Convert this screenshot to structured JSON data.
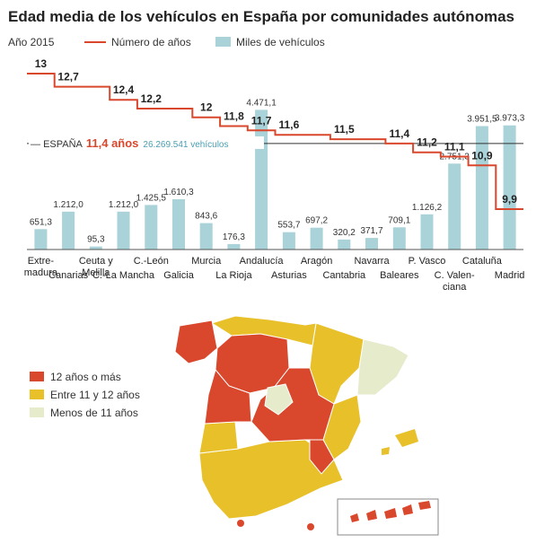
{
  "title": "Edad media de los vehículos en España por comunidades autónomas",
  "year_label": "Año 2015",
  "colors": {
    "line": "#d9472c",
    "bar": "#a9d3d8",
    "high": "#d9472c",
    "mid": "#e8c02a",
    "low": "#e6ebcc",
    "reference": "#333333"
  },
  "chart_data": {
    "type": "bar",
    "title": "Edad media de los vehículos en España por comunidades autónomas",
    "categories": [
      "Extremadura",
      "Canarias",
      "Ceuta y Melilla",
      "C.-La Mancha",
      "C.-León",
      "Galicia",
      "Murcia",
      "La Rioja",
      "Andalucía",
      "Asturias",
      "Aragón",
      "Cantabria",
      "Navarra",
      "Baleares",
      "P. Vasco",
      "C. Valenciana",
      "Cataluña",
      "Madrid"
    ],
    "category_labels": [
      [
        "Extre-",
        "madura"
      ],
      [
        "Canarias"
      ],
      [
        "Ceuta y",
        "Melilla"
      ],
      [
        "C.-La Mancha"
      ],
      [
        "C.-León"
      ],
      [
        "Galicia"
      ],
      [
        "Murcia"
      ],
      [
        "La Rioja"
      ],
      [
        "Andalucía"
      ],
      [
        "Asturias"
      ],
      [
        "Aragón"
      ],
      [
        "Cantabria"
      ],
      [
        "Navarra"
      ],
      [
        "Baleares"
      ],
      [
        "P. Vasco"
      ],
      [
        "C. Valen-",
        "ciana"
      ],
      [
        "Cataluña"
      ],
      [
        "Madrid"
      ]
    ],
    "series": [
      {
        "name": "Miles de vehículos",
        "type": "bar",
        "values": [
          651.3,
          1212.0,
          95.3,
          1212.0,
          1425.5,
          1610.3,
          843.6,
          176.3,
          4471.1,
          553.7,
          697.2,
          320.2,
          371.7,
          709.1,
          1126.2,
          2751.3,
          3951.5,
          3973.3
        ],
        "value_labels": [
          "651,3",
          "1.212,0",
          "95,3",
          "1.212,0",
          "1.425,5",
          "1.610,3",
          "843,6",
          "176,3",
          "4.471,1",
          "553,7",
          "697,2",
          "320,2",
          "371,7",
          "709,1",
          "1.126,2",
          "2.751,3",
          "3.951,5",
          "3.973,3"
        ]
      },
      {
        "name": "Número de años",
        "type": "step-line",
        "values": [
          13,
          12.7,
          12.7,
          12.4,
          12.2,
          12.2,
          12,
          11.8,
          11.7,
          11.6,
          11.6,
          11.5,
          11.5,
          11.4,
          11.2,
          11.1,
          10.9,
          9.9
        ],
        "value_labels": [
          "13",
          "12,7",
          "",
          "12,4",
          "12,2",
          "",
          "12",
          "11,8",
          "11,7",
          "11,6",
          "",
          "11,5",
          "",
          "11,4",
          "11,2",
          "11,1",
          "10,9",
          "9,9"
        ]
      }
    ],
    "reference_line": {
      "value": 11.4,
      "label": "ESPAÑA",
      "value_label": "11,4 años",
      "note": "26.269.541 vehículos"
    },
    "legend_placement": "top-left",
    "grid": false
  },
  "map": {
    "legend": [
      {
        "label": "12 años o más",
        "color": "#d9472c"
      },
      {
        "label": "Entre 11 y 12 años",
        "color": "#e8c02a"
      },
      {
        "label": "Menos de 11 años",
        "color": "#e6ebcc"
      }
    ]
  }
}
